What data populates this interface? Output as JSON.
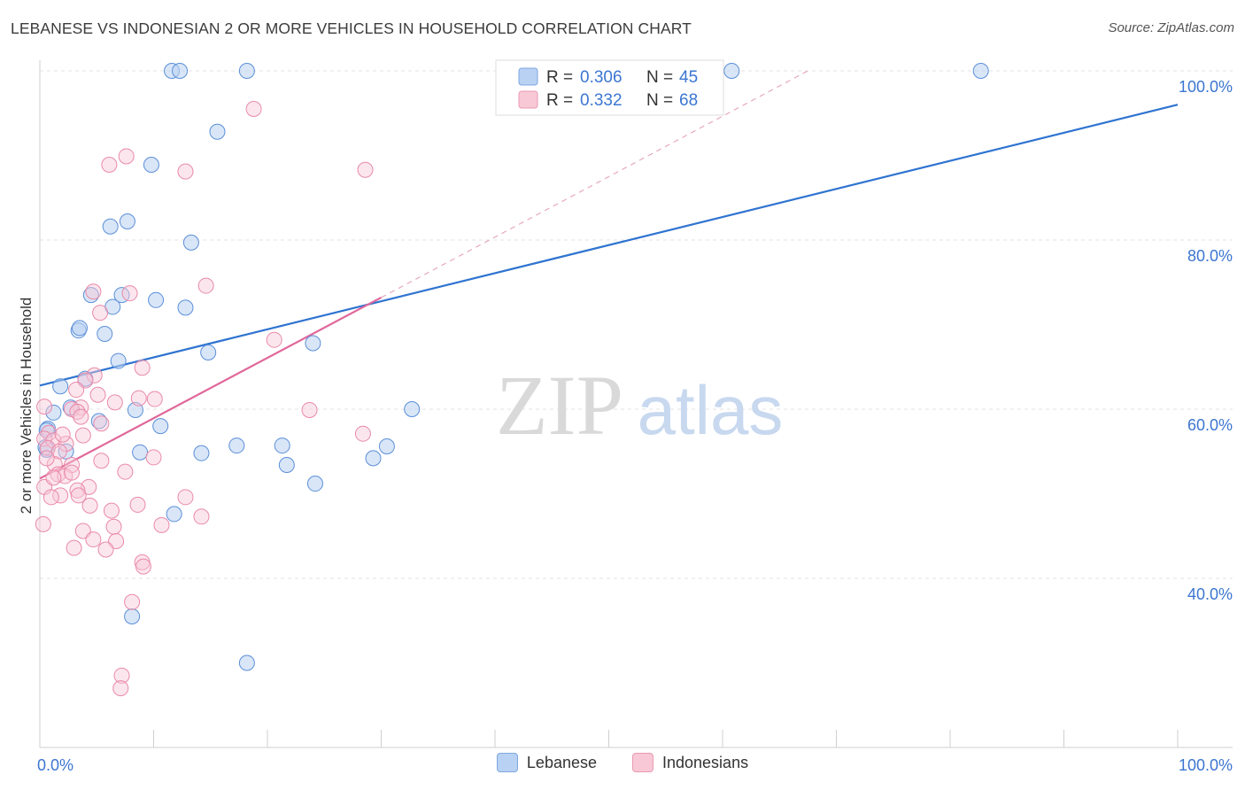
{
  "title": "LEBANESE VS INDONESIAN 2 OR MORE VEHICLES IN HOUSEHOLD CORRELATION CHART",
  "source": "Source: ZipAtlas.com",
  "watermark": {
    "zip": "ZIP",
    "atlas": "atlas"
  },
  "colors": {
    "blue": "#4a86d8",
    "blue_line": "#2f74d0",
    "pink": "#e8779c",
    "pink_line": "#e0679a",
    "axis_label_blue": "#3b76d1"
  },
  "legend": {
    "rows": [
      {
        "r_label": "R =",
        "r_value": "0.306",
        "n_label": "N =",
        "n_value": "45",
        "series": "Lebanese"
      },
      {
        "r_label": "R =",
        "r_value": "0.332",
        "n_label": "N =",
        "n_value": "68",
        "series": "Indonesians"
      }
    ]
  },
  "bottom_legend": [
    "Lebanese",
    "Indonesians"
  ],
  "chart_data": {
    "type": "scatter",
    "title": "LEBANESE VS INDONESIAN 2 OR MORE VEHICLES IN HOUSEHOLD CORRELATION CHART",
    "xlabel": "",
    "ylabel": "2 or more Vehicles in Household",
    "xlim": [
      0,
      100
    ],
    "ylim": [
      20,
      104
    ],
    "x_tick_labels": [
      "0.0%",
      "100.0%"
    ],
    "y_ticks": [
      {
        "value": 40,
        "label": "40.0%"
      },
      {
        "value": 60,
        "label": "60.0%"
      },
      {
        "value": 80,
        "label": "80.0%"
      },
      {
        "value": 100,
        "label": "100.0%"
      }
    ],
    "grid": true,
    "series": [
      {
        "name": "Lebanese",
        "color": "#4a86d8",
        "points": [
          [
            11.6,
            100
          ],
          [
            12.3,
            100
          ],
          [
            18.2,
            100
          ],
          [
            60.8,
            100
          ],
          [
            82.7,
            100
          ],
          [
            15.6,
            92.8
          ],
          [
            9.8,
            88.9
          ],
          [
            7.7,
            82.2
          ],
          [
            6.2,
            81.6
          ],
          [
            13.3,
            79.7
          ],
          [
            4.5,
            73.5
          ],
          [
            7.2,
            73.5
          ],
          [
            10.2,
            72.9
          ],
          [
            6.4,
            72.1
          ],
          [
            12.8,
            72.0
          ],
          [
            3.4,
            69.3
          ],
          [
            3.5,
            69.6
          ],
          [
            5.7,
            68.9
          ],
          [
            14.8,
            66.7
          ],
          [
            24.0,
            67.8
          ],
          [
            6.9,
            65.7
          ],
          [
            4.0,
            63.6
          ],
          [
            1.8,
            62.7
          ],
          [
            2.7,
            60.2
          ],
          [
            1.2,
            59.6
          ],
          [
            8.4,
            59.9
          ],
          [
            32.7,
            60.0
          ],
          [
            5.2,
            58.6
          ],
          [
            0.7,
            57.7
          ],
          [
            10.6,
            58.0
          ],
          [
            0.6,
            57.5
          ],
          [
            17.3,
            55.7
          ],
          [
            21.3,
            55.7
          ],
          [
            30.5,
            55.6
          ],
          [
            0.6,
            55.2
          ],
          [
            2.3,
            55.0
          ],
          [
            8.8,
            54.9
          ],
          [
            14.2,
            54.8
          ],
          [
            29.3,
            54.2
          ],
          [
            21.7,
            53.4
          ],
          [
            24.2,
            51.2
          ],
          [
            11.8,
            47.6
          ],
          [
            8.1,
            35.5
          ],
          [
            18.2,
            30.0
          ],
          [
            0.5,
            55.5
          ]
        ],
        "trend": {
          "x": [
            0,
            100
          ],
          "y": [
            62.8,
            96.0
          ]
        }
      },
      {
        "name": "Indonesians",
        "color": "#e8779c",
        "points": [
          [
            18.8,
            95.5
          ],
          [
            7.6,
            89.9
          ],
          [
            6.1,
            88.9
          ],
          [
            12.8,
            88.1
          ],
          [
            28.6,
            88.3
          ],
          [
            14.6,
            74.6
          ],
          [
            4.7,
            73.9
          ],
          [
            7.9,
            73.7
          ],
          [
            5.3,
            71.4
          ],
          [
            20.6,
            68.2
          ],
          [
            9.0,
            64.9
          ],
          [
            4.8,
            64.0
          ],
          [
            4.0,
            63.4
          ],
          [
            8.7,
            61.3
          ],
          [
            10.1,
            61.2
          ],
          [
            0.4,
            60.3
          ],
          [
            3.6,
            60.2
          ],
          [
            2.8,
            60.0
          ],
          [
            6.6,
            60.8
          ],
          [
            23.7,
            59.9
          ],
          [
            3.3,
            59.7
          ],
          [
            3.6,
            59.1
          ],
          [
            5.4,
            58.3
          ],
          [
            0.8,
            57.2
          ],
          [
            3.8,
            56.9
          ],
          [
            28.4,
            57.1
          ],
          [
            0.4,
            56.5
          ],
          [
            1.2,
            56.3
          ],
          [
            2.3,
            55.9
          ],
          [
            0.7,
            55.4
          ],
          [
            1.7,
            55.0
          ],
          [
            10.0,
            54.3
          ],
          [
            5.4,
            53.9
          ],
          [
            1.3,
            53.5
          ],
          [
            2.8,
            53.4
          ],
          [
            1.6,
            52.3
          ],
          [
            2.2,
            52.1
          ],
          [
            2.8,
            52.5
          ],
          [
            7.5,
            52.6
          ],
          [
            0.4,
            50.8
          ],
          [
            4.3,
            50.8
          ],
          [
            3.3,
            50.4
          ],
          [
            1.8,
            49.8
          ],
          [
            1.0,
            49.6
          ],
          [
            3.4,
            49.8
          ],
          [
            12.8,
            49.6
          ],
          [
            8.6,
            48.7
          ],
          [
            4.4,
            48.6
          ],
          [
            6.3,
            48.0
          ],
          [
            14.2,
            47.3
          ],
          [
            0.3,
            46.4
          ],
          [
            10.7,
            46.3
          ],
          [
            6.5,
            46.1
          ],
          [
            3.8,
            45.6
          ],
          [
            4.7,
            44.6
          ],
          [
            6.7,
            44.4
          ],
          [
            3.0,
            43.6
          ],
          [
            5.8,
            43.4
          ],
          [
            9.0,
            41.9
          ],
          [
            9.1,
            41.4
          ],
          [
            8.1,
            37.2
          ],
          [
            7.2,
            28.5
          ],
          [
            7.1,
            27.0
          ],
          [
            2.0,
            57.0
          ],
          [
            1.2,
            51.9
          ],
          [
            0.6,
            54.2
          ],
          [
            3.2,
            62.3
          ],
          [
            5.1,
            61.7
          ]
        ],
        "trend": {
          "x": [
            0,
            30
          ],
          "y": [
            51.8,
            73.2
          ]
        },
        "trend_dashed": {
          "x": [
            30,
            67.5
          ],
          "y": [
            73.2,
            100
          ]
        }
      }
    ]
  }
}
